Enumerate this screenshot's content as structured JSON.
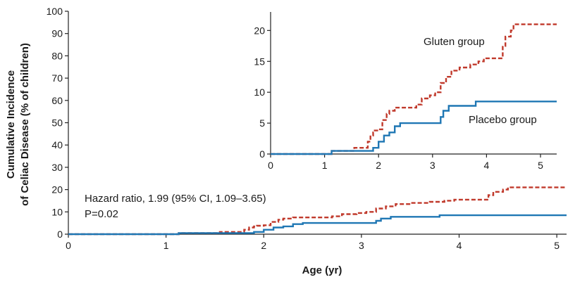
{
  "chart_data": [
    {
      "type": "line",
      "step": true,
      "role": "main",
      "xlabel": "Age (yr)",
      "ylabel": [
        "Cumulative Incidence",
        "of Celiac Disease (% of children)"
      ],
      "xlim": [
        0,
        5.1
      ],
      "ylim": [
        0,
        100
      ],
      "xticks": [
        0,
        1,
        2,
        3,
        4,
        5
      ],
      "yticks": [
        0,
        10,
        20,
        30,
        40,
        50,
        60,
        70,
        80,
        90,
        100
      ],
      "grid": false,
      "annotations": [
        "Hazard ratio, 1.99 (95% CI, 1.09–3.65)",
        "P=0.02"
      ],
      "series": [
        {
          "name": "Gluten group",
          "color": "#c0392b",
          "dash": "dashed",
          "x": [
            0,
            1.13,
            1.55,
            1.8,
            1.85,
            1.9,
            1.93,
            2.0,
            2.07,
            2.15,
            2.2,
            2.3,
            2.7,
            2.8,
            2.95,
            3.05,
            3.15,
            3.25,
            3.35,
            3.5,
            3.7,
            3.85,
            3.95,
            4.3,
            4.35,
            4.45,
            4.5,
            5.1
          ],
          "y": [
            0,
            0.5,
            1.0,
            2.0,
            3.0,
            3.5,
            3.8,
            4.0,
            5.5,
            6.5,
            7.0,
            7.5,
            8.0,
            9.0,
            9.5,
            10.0,
            11.5,
            12.5,
            13.5,
            14.0,
            14.5,
            15.0,
            15.5,
            17.5,
            19.0,
            20.0,
            21.0,
            21.0
          ]
        },
        {
          "name": "Placebo group",
          "color": "#1f77b4",
          "dash": "solid",
          "x": [
            0,
            1.13,
            1.9,
            2.0,
            2.1,
            2.2,
            2.3,
            2.4,
            3.05,
            3.15,
            3.2,
            3.3,
            3.8,
            5.1
          ],
          "y": [
            0,
            0.5,
            1.0,
            2.0,
            3.0,
            3.5,
            4.5,
            5.0,
            5.0,
            6.0,
            7.0,
            7.8,
            8.5,
            8.5
          ]
        }
      ]
    },
    {
      "type": "line",
      "step": true,
      "role": "inset",
      "xlim": [
        0,
        5.3
      ],
      "ylim": [
        0,
        23
      ],
      "xticks": [
        0,
        1,
        2,
        3,
        4,
        5
      ],
      "yticks": [
        0,
        5,
        10,
        15,
        20
      ],
      "grid": false,
      "series_labels": [
        "Gluten group",
        "Placebo group"
      ],
      "series": [
        {
          "name": "Gluten group",
          "color": "#c0392b",
          "dash": "dashed",
          "x": [
            0,
            1.13,
            1.55,
            1.8,
            1.85,
            1.9,
            1.93,
            2.0,
            2.07,
            2.15,
            2.2,
            2.3,
            2.7,
            2.8,
            2.95,
            3.05,
            3.15,
            3.25,
            3.35,
            3.5,
            3.7,
            3.85,
            3.95,
            4.3,
            4.35,
            4.45,
            4.5,
            5.3
          ],
          "y": [
            0,
            0.5,
            1.0,
            2.0,
            3.0,
            3.5,
            3.8,
            4.0,
            5.5,
            6.5,
            7.0,
            7.5,
            8.0,
            9.0,
            9.5,
            10.0,
            11.5,
            12.5,
            13.5,
            14.0,
            14.5,
            15.0,
            15.5,
            17.5,
            19.0,
            20.0,
            21.0,
            21.0
          ]
        },
        {
          "name": "Placebo group",
          "color": "#1f77b4",
          "dash": "solid",
          "x": [
            0,
            1.13,
            1.9,
            2.0,
            2.1,
            2.2,
            2.3,
            2.4,
            3.05,
            3.15,
            3.2,
            3.3,
            3.8,
            5.3
          ],
          "y": [
            0,
            0.5,
            1.0,
            2.0,
            3.0,
            3.5,
            4.5,
            5.0,
            5.0,
            6.0,
            7.0,
            7.8,
            8.5,
            8.5
          ]
        }
      ]
    }
  ]
}
